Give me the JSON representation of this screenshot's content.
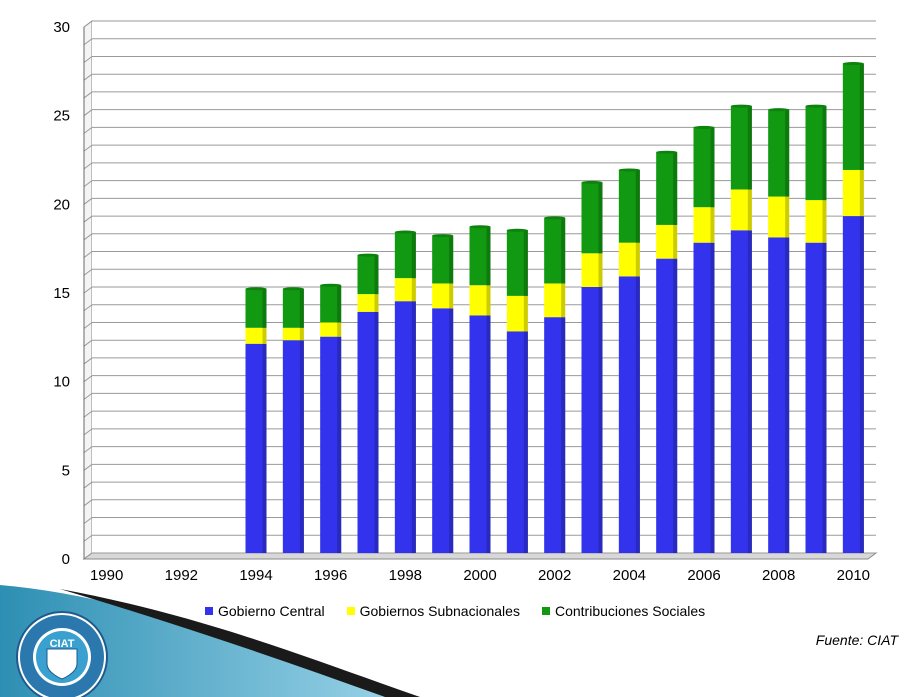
{
  "chart_data": {
    "type": "bar",
    "stacked": true,
    "categories": [
      "1990",
      "1991",
      "1992",
      "1993",
      "1994",
      "1995",
      "1996",
      "1997",
      "1998",
      "1999",
      "2000",
      "2001",
      "2002",
      "2003",
      "2004",
      "2005",
      "2006",
      "2007",
      "2008",
      "2009",
      "2010"
    ],
    "x_tick_labels": [
      "1990",
      "1992",
      "1994",
      "1996",
      "1998",
      "2000",
      "2002",
      "2004",
      "2006",
      "2008",
      "2010"
    ],
    "ylim": [
      0,
      30
    ],
    "y_ticks": [
      0,
      5,
      10,
      15,
      20,
      25,
      30
    ],
    "grid": true,
    "legend_position": "bottom",
    "series": [
      {
        "name": "Gobierno Central",
        "color": "#3333ee",
        "values": [
          null,
          null,
          null,
          null,
          11.8,
          12.0,
          12.2,
          13.6,
          14.2,
          13.8,
          13.4,
          12.5,
          13.3,
          15.0,
          15.6,
          16.6,
          17.5,
          18.2,
          17.8,
          17.5,
          19.0
        ]
      },
      {
        "name": "Gobiernos Subnacionales",
        "color": "#ffff00",
        "values": [
          null,
          null,
          null,
          null,
          0.9,
          0.7,
          0.8,
          1.0,
          1.3,
          1.4,
          1.7,
          2.0,
          1.9,
          1.9,
          1.9,
          1.9,
          2.0,
          2.3,
          2.3,
          2.4,
          2.6
        ]
      },
      {
        "name": "Contribuciones Sociales",
        "color": "#119911",
        "values": [
          null,
          null,
          null,
          null,
          2.2,
          2.2,
          2.1,
          2.2,
          2.6,
          2.7,
          3.3,
          3.7,
          3.7,
          4.0,
          4.1,
          4.1,
          4.5,
          4.7,
          4.9,
          5.3,
          6.0
        ]
      }
    ]
  },
  "source": "Fuente: CIAT",
  "logo": {
    "name": "ciat-logo",
    "text": "CIAT",
    "ring_text": "CENTRO INTERAMERICANO DE ADMINISTRACIONES TRIBUTARIAS",
    "founded": "FUNDADO 1967"
  }
}
